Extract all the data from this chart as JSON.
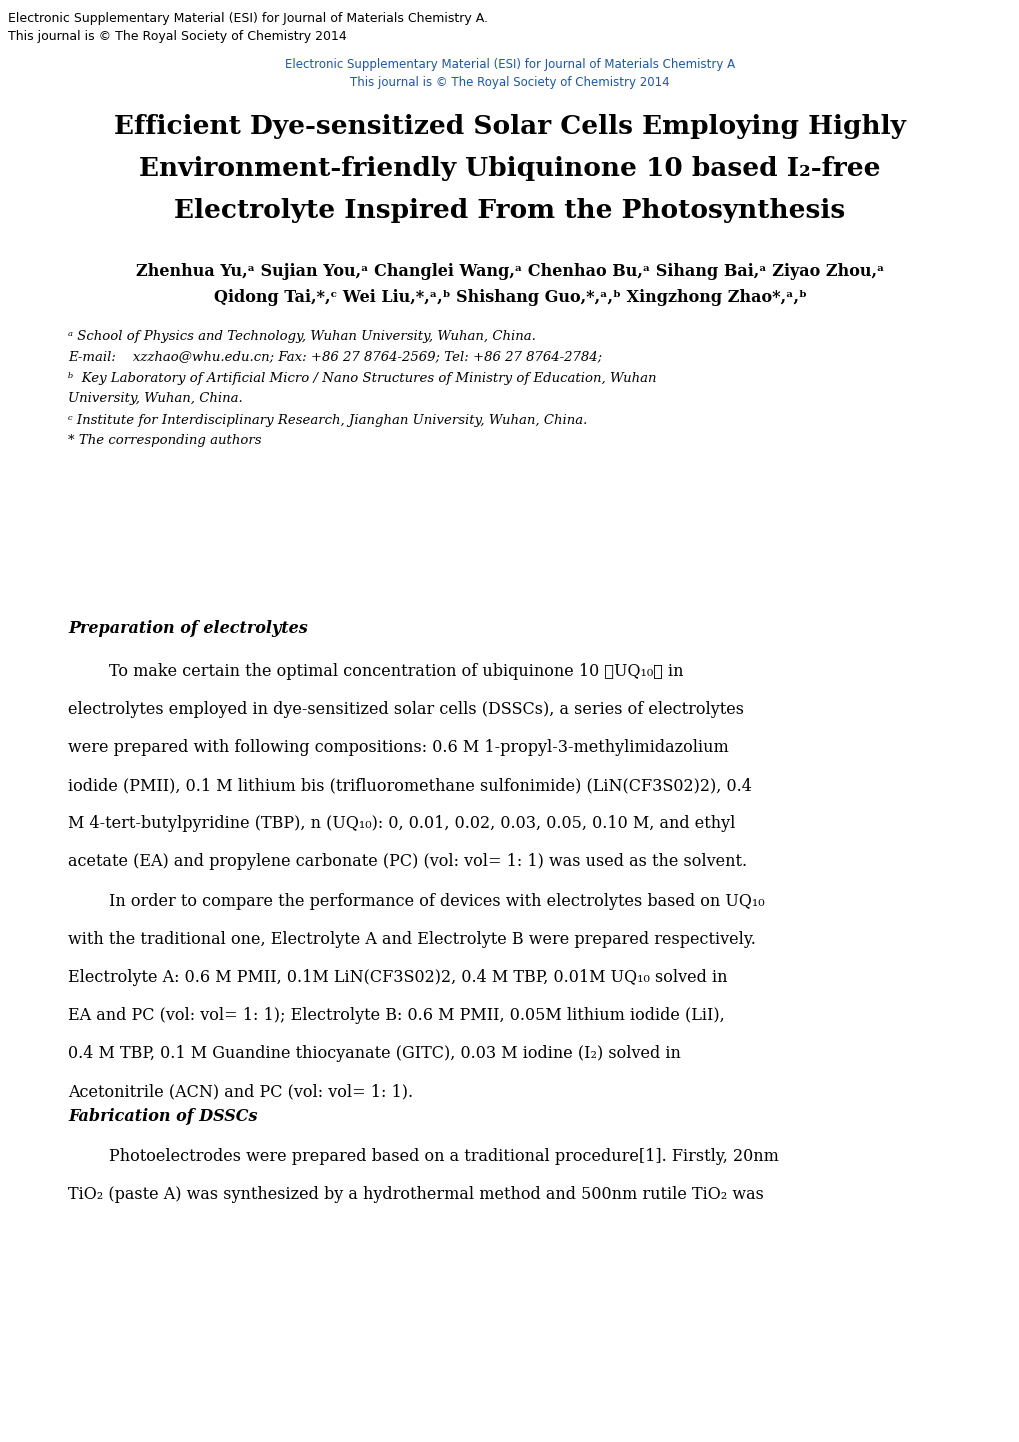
{
  "bg_color": "#ffffff",
  "header_black_line1": "Electronic Supplementary Material (ESI) for Journal of Materials Chemistry A.",
  "header_black_line2": "This journal is © The Royal Society of Chemistry 2014",
  "header_blue_line1": "Electronic Supplementary Material (ESI) for Journal of Materials Chemistry A",
  "header_blue_line2": "This journal is © The Royal Society of Chemistry 2014",
  "title_line1": "Efficient Dye-sensitized Solar Cells Employing Highly",
  "title_line2": "Environment-friendly Ubiquinone 10 based I₂-free",
  "title_line3": "Electrolyte Inspired From the Photosynthesis",
  "authors_line1": "Zhenhua Yu,ᵃ Sujian You,ᵃ Changlei Wang,ᵃ Chenhao Bu,ᵃ Sihang Bai,ᵃ Ziyao Zhou,ᵃ",
  "authors_line2": "Qidong Tai,*,ᶜ Wei Liu,*,ᵃ,ᵇ Shishang Guo,*,ᵃ,ᵇ Xingzhong Zhao*,ᵃ,ᵇ",
  "affil_a": "ᵃ School of Physics and Technology, Wuhan University, Wuhan, China.",
  "affil_email": "E-mail:    xzzhao@whu.edu.cn; Fax: +86 27 8764-2569; Tel: +86 27 8764-2784;",
  "affil_b1": "ᵇ  Key Laboratory of Artificial Micro / Nano Structures of Ministry of Education, Wuhan",
  "affil_b2": "University, Wuhan, China.",
  "affil_c": "ᶜ Institute for Interdisciplinary Research, Jianghan University, Wuhan, China.",
  "affil_star": "* The corresponding authors",
  "section1_title": "Preparation of electrolytes",
  "para1_lines": [
    "        To make certain the optimal concentration of ubiquinone 10 （UQ₁₀） in",
    "electrolytes employed in dye-sensitized solar cells (DSSCs), a series of electrolytes",
    "were prepared with following compositions: 0.6 M 1-propyl-3-methylimidazolium",
    "iodide (PMII), 0.1 M lithium bis (trifluoromethane sulfonimide) (LiN(CF3S02)2), 0.4",
    "M 4-tert-butylpyridine (TBP), n (UQ₁₀): 0, 0.01, 0.02, 0.03, 0.05, 0.10 M, and ethyl",
    "acetate (EA) and propylene carbonate (PC) (vol: vol= 1: 1) was used as the solvent."
  ],
  "para2_lines": [
    "        In order to compare the performance of devices with electrolytes based on UQ₁₀",
    "with the traditional one, Electrolyte A and Electrolyte B were prepared respectively.",
    "Electrolyte A: 0.6 M PMII, 0.1M LiN(CF3S02)2, 0.4 M TBP, 0.01M UQ₁₀ solved in",
    "EA and PC (vol: vol= 1: 1); Electrolyte B: 0.6 M PMII, 0.05M lithium iodide (LiI),",
    "0.4 M TBP, 0.1 M Guandine thiocyanate (GITC), 0.03 M iodine (I₂) solved in",
    "Acetonitrile (ACN) and PC (vol: vol= 1: 1)."
  ],
  "section2_title": "Fabrication of DSSCs",
  "para3_lines": [
    "        Photoelectrodes were prepared based on a traditional procedure[1]. Firstly, 20nm",
    "TiO₂ (paste A) was synthesized by a hydrothermal method and 500nm rutile TiO₂ was"
  ]
}
